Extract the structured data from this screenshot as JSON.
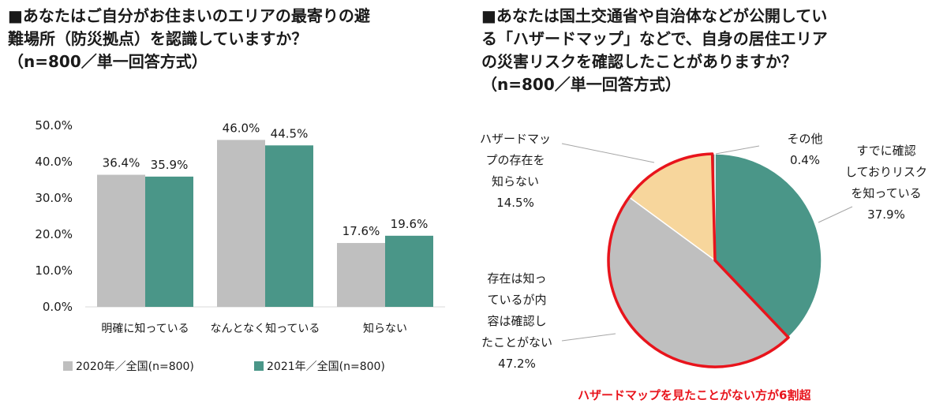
{
  "left": {
    "title_lines": [
      "■あなたはご自分がお住まいのエリアの最寄りの避",
      "難場所（防災拠点）を認識していますか？",
      "（n=800／単一回答方式）"
    ]
  },
  "right": {
    "title_lines": [
      "■あなたは国土交通省や自治体などが公開してい",
      "る「ハザードマップ」などで、自身の居住エリア",
      "の災害リスクを確認したことがありますか？",
      "（n=800／単一回答方式）"
    ],
    "annotation": "ハザードマップを見たことがない方が6割超"
  },
  "chart_data": [
    {
      "type": "bar",
      "categories": [
        "明確に知っている",
        "なんとなく知っている",
        "知らない"
      ],
      "series": [
        {
          "name": "2020年／全国(n=800)",
          "values": [
            36.4,
            46.0,
            17.6
          ],
          "labels": [
            "36.4%",
            "46.0%",
            "17.6%"
          ],
          "color": "#bfbfbf"
        },
        {
          "name": "2021年／全国(n=800)",
          "values": [
            35.9,
            44.5,
            19.6
          ],
          "labels": [
            "35.9%",
            "44.5%",
            "19.6%"
          ],
          "color": "#4a9688"
        }
      ],
      "yticks": [
        "50.0%",
        "40.0%",
        "30.0%",
        "20.0%",
        "10.0%",
        "0.0%"
      ],
      "ylim": [
        0,
        50
      ],
      "grid": false,
      "legend": "bottom"
    },
    {
      "type": "pie",
      "slices": [
        {
          "label_lines": [
            "すでに確認",
            "しておりリスク",
            "を知っている",
            "37.9%"
          ],
          "value": 37.9,
          "color": "#4a9688"
        },
        {
          "label_lines": [
            "存在は知っ",
            "ているが内",
            "容は確認し",
            "たことがない",
            "47.2%"
          ],
          "value": 47.2,
          "color": "#bfbfbf"
        },
        {
          "label_lines": [
            "ハザードマッ",
            "プの存在を",
            "知らない",
            "14.5%"
          ],
          "value": 14.5,
          "color": "#f7d69c"
        },
        {
          "label_lines": [
            "その他",
            "0.4%"
          ],
          "value": 0.4,
          "color": "#4a9688"
        }
      ],
      "highlight_color": "#e8141c"
    }
  ]
}
